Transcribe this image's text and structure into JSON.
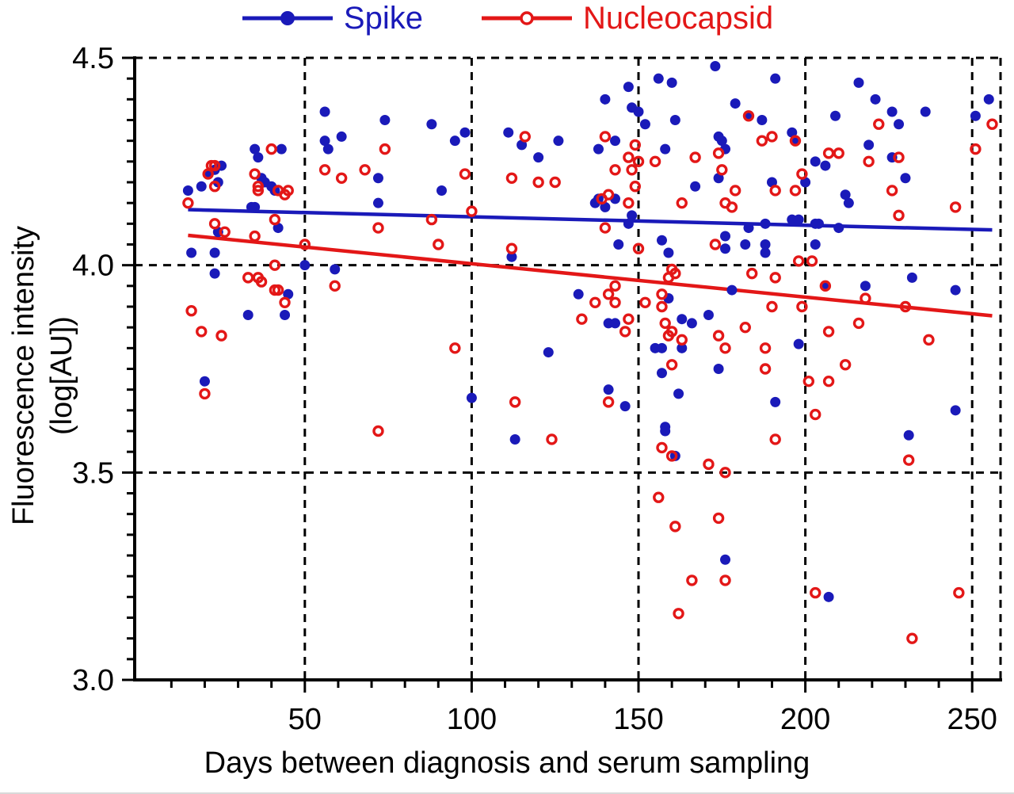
{
  "legend": {
    "series": [
      {
        "label": "Spike",
        "color": "#1a1ab9",
        "marker": "filled-circle"
      },
      {
        "label": "Nucleocapsid",
        "color": "#e31717",
        "marker": "open-circle"
      }
    ]
  },
  "axes": {
    "x": {
      "label": "Days between diagnosis and serum sampling",
      "tick_labels": [
        "50",
        "100",
        "150",
        "200",
        "250"
      ],
      "ticks": [
        50,
        100,
        150,
        200,
        250
      ],
      "minor_step": 10,
      "range": [
        -1,
        258.5
      ]
    },
    "y": {
      "label": "Fluorescence intensity (log[AU])",
      "tick_labels": [
        "3.0",
        "3.5",
        "4.0",
        "4.5"
      ],
      "ticks": [
        3.0,
        3.5,
        4.0,
        4.5
      ],
      "minor_step": 0.05,
      "range": [
        3.0,
        4.5
      ]
    }
  },
  "chart_data": {
    "type": "scatter",
    "title": "",
    "xlabel": "Days between diagnosis and serum sampling",
    "ylabel": "Fluorescence intensity (log[AU])",
    "xlim": [
      -1,
      258.5
    ],
    "ylim": [
      3.0,
      4.5
    ],
    "grid": "dashed-black-major-gridlines",
    "legend_position": "top-center",
    "axis_color": "#000000",
    "series": [
      {
        "name": "Spike",
        "marker": "filled-circle",
        "color": "#1a1ab9",
        "trend_line": {
          "x1": 15,
          "y1": 4.134,
          "x2": 256,
          "y2": 4.085
        },
        "points": [
          [
            15,
            4.18
          ],
          [
            19,
            4.19
          ],
          [
            21,
            4.22
          ],
          [
            23,
            4.23
          ],
          [
            25,
            4.24
          ],
          [
            24,
            4.2
          ],
          [
            16,
            4.03
          ],
          [
            23,
            4.03
          ],
          [
            24,
            4.08
          ],
          [
            23,
            3.98
          ],
          [
            20,
            3.72
          ],
          [
            33,
            3.88
          ],
          [
            35,
            4.28
          ],
          [
            36,
            4.26
          ],
          [
            43,
            4.28
          ],
          [
            37,
            4.21
          ],
          [
            38,
            4.2
          ],
          [
            40,
            4.19
          ],
          [
            41,
            4.18
          ],
          [
            35,
            4.14
          ],
          [
            42,
            4.09
          ],
          [
            34,
            4.14
          ],
          [
            45,
            3.93
          ],
          [
            44,
            3.88
          ],
          [
            50,
            4.0
          ],
          [
            56,
            4.37
          ],
          [
            56,
            4.3
          ],
          [
            57,
            4.28
          ],
          [
            61,
            4.31
          ],
          [
            59,
            3.99
          ],
          [
            72,
            4.21
          ],
          [
            74,
            4.35
          ],
          [
            72,
            4.15
          ],
          [
            88,
            4.34
          ],
          [
            91,
            4.18
          ],
          [
            95,
            4.3
          ],
          [
            98,
            4.32
          ],
          [
            100,
            3.68
          ],
          [
            111,
            4.32
          ],
          [
            112,
            4.02
          ],
          [
            113,
            3.58
          ],
          [
            115,
            4.29
          ],
          [
            120,
            4.26
          ],
          [
            123,
            3.79
          ],
          [
            126,
            4.3
          ],
          [
            132,
            3.93
          ],
          [
            137,
            4.15
          ],
          [
            138,
            4.28
          ],
          [
            138,
            4.16
          ],
          [
            140,
            4.4
          ],
          [
            140,
            4.14
          ],
          [
            141,
            3.86
          ],
          [
            141,
            3.7
          ],
          [
            143,
            4.3
          ],
          [
            143,
            4.16
          ],
          [
            143,
            3.86
          ],
          [
            144,
            4.05
          ],
          [
            146,
            3.66
          ],
          [
            147,
            4.43
          ],
          [
            147,
            4.1
          ],
          [
            148,
            4.38
          ],
          [
            148,
            4.12
          ],
          [
            150,
            4.37
          ],
          [
            152,
            4.34
          ],
          [
            155,
            3.8
          ],
          [
            156,
            4.45
          ],
          [
            157,
            3.8
          ],
          [
            157,
            3.74
          ],
          [
            157,
            4.06
          ],
          [
            158,
            3.61
          ],
          [
            158,
            3.6
          ],
          [
            158,
            4.28
          ],
          [
            159,
            3.92
          ],
          [
            159,
            4.03
          ],
          [
            160,
            4.44
          ],
          [
            161,
            4.35
          ],
          [
            161,
            3.54
          ],
          [
            162,
            3.69
          ],
          [
            163,
            3.87
          ],
          [
            163,
            3.8
          ],
          [
            166,
            3.86
          ],
          [
            167,
            4.19
          ],
          [
            171,
            3.88
          ],
          [
            173,
            4.48
          ],
          [
            174,
            4.31
          ],
          [
            175,
            4.3
          ],
          [
            174,
            4.21
          ],
          [
            174,
            3.75
          ],
          [
            176,
            4.28
          ],
          [
            176,
            4.07
          ],
          [
            176,
            4.04
          ],
          [
            176,
            3.29
          ],
          [
            178,
            3.94
          ],
          [
            179,
            4.39
          ],
          [
            182,
            4.05
          ],
          [
            183,
            4.36
          ],
          [
            183,
            4.09
          ],
          [
            187,
            4.35
          ],
          [
            188,
            4.05
          ],
          [
            188,
            4.1
          ],
          [
            188,
            4.03
          ],
          [
            191,
            4.45
          ],
          [
            190,
            4.2
          ],
          [
            191,
            3.67
          ],
          [
            196,
            4.32
          ],
          [
            197,
            4.3
          ],
          [
            196,
            4.11
          ],
          [
            198,
            4.11
          ],
          [
            198,
            3.81
          ],
          [
            200,
            4.2
          ],
          [
            203,
            4.25
          ],
          [
            203,
            4.1
          ],
          [
            203,
            4.05
          ],
          [
            204,
            4.1
          ],
          [
            206,
            4.24
          ],
          [
            206,
            3.95
          ],
          [
            207,
            3.2
          ],
          [
            209,
            4.36
          ],
          [
            210,
            4.09
          ],
          [
            212,
            4.17
          ],
          [
            213,
            4.15
          ],
          [
            216,
            4.44
          ],
          [
            218,
            3.95
          ],
          [
            219,
            4.29
          ],
          [
            221,
            4.4
          ],
          [
            226,
            4.37
          ],
          [
            226,
            4.26
          ],
          [
            228,
            4.34
          ],
          [
            230,
            4.21
          ],
          [
            231,
            3.59
          ],
          [
            232,
            3.97
          ],
          [
            236,
            4.37
          ],
          [
            245,
            3.94
          ],
          [
            245,
            3.65
          ],
          [
            251,
            4.36
          ],
          [
            255,
            4.4
          ]
        ]
      },
      {
        "name": "Nucleocapsid",
        "marker": "open-circle",
        "color": "#e31717",
        "trend_line": {
          "x1": 15,
          "y1": 4.072,
          "x2": 256,
          "y2": 3.878
        },
        "points": [
          [
            15,
            4.15
          ],
          [
            21,
            4.22
          ],
          [
            22,
            4.24
          ],
          [
            23,
            4.24
          ],
          [
            23,
            4.19
          ],
          [
            23,
            4.1
          ],
          [
            26,
            4.08
          ],
          [
            16,
            3.89
          ],
          [
            19,
            3.84
          ],
          [
            25,
            3.83
          ],
          [
            20,
            3.69
          ],
          [
            33,
            3.97
          ],
          [
            36,
            3.97
          ],
          [
            37,
            3.96
          ],
          [
            35,
            4.22
          ],
          [
            36,
            4.19
          ],
          [
            36,
            4.18
          ],
          [
            40,
            4.28
          ],
          [
            42,
            4.18
          ],
          [
            44,
            4.17
          ],
          [
            45,
            4.18
          ],
          [
            35,
            4.07
          ],
          [
            41,
            4.11
          ],
          [
            41,
            3.94
          ],
          [
            42,
            3.94
          ],
          [
            44,
            3.91
          ],
          [
            41,
            4.0
          ],
          [
            50,
            4.05
          ],
          [
            56,
            4.23
          ],
          [
            59,
            3.95
          ],
          [
            61,
            4.21
          ],
          [
            68,
            4.23
          ],
          [
            72,
            3.6
          ],
          [
            72,
            4.09
          ],
          [
            74,
            4.28
          ],
          [
            88,
            4.11
          ],
          [
            90,
            4.05
          ],
          [
            95,
            3.8
          ],
          [
            98,
            4.22
          ],
          [
            100,
            4.13
          ],
          [
            112,
            4.21
          ],
          [
            112,
            4.04
          ],
          [
            113,
            3.67
          ],
          [
            116,
            4.31
          ],
          [
            120,
            4.2
          ],
          [
            124,
            3.58
          ],
          [
            125,
            4.2
          ],
          [
            133,
            3.87
          ],
          [
            137,
            3.91
          ],
          [
            139,
            4.16
          ],
          [
            140,
            4.31
          ],
          [
            140,
            4.09
          ],
          [
            141,
            4.17
          ],
          [
            141,
            3.93
          ],
          [
            141,
            3.67
          ],
          [
            143,
            4.23
          ],
          [
            143,
            3.95
          ],
          [
            143,
            3.91
          ],
          [
            146,
            3.84
          ],
          [
            147,
            4.15
          ],
          [
            147,
            4.26
          ],
          [
            147,
            3.87
          ],
          [
            148,
            4.23
          ],
          [
            149,
            4.29
          ],
          [
            149,
            4.19
          ],
          [
            150,
            4.25
          ],
          [
            150,
            4.04
          ],
          [
            152,
            3.91
          ],
          [
            155,
            4.25
          ],
          [
            157,
            3.93
          ],
          [
            157,
            3.9
          ],
          [
            157,
            3.56
          ],
          [
            156,
            3.44
          ],
          [
            158,
            3.86
          ],
          [
            159,
            3.97
          ],
          [
            159,
            3.83
          ],
          [
            160,
            3.99
          ],
          [
            161,
            3.98
          ],
          [
            160,
            3.84
          ],
          [
            160,
            3.76
          ],
          [
            160,
            3.54
          ],
          [
            161,
            3.37
          ],
          [
            162,
            3.16
          ],
          [
            163,
            4.15
          ],
          [
            163,
            3.82
          ],
          [
            166,
            3.24
          ],
          [
            167,
            4.26
          ],
          [
            171,
            3.52
          ],
          [
            174,
            4.27
          ],
          [
            173,
            4.05
          ],
          [
            174,
            3.83
          ],
          [
            174,
            3.39
          ],
          [
            175,
            4.23
          ],
          [
            176,
            4.15
          ],
          [
            176,
            3.8
          ],
          [
            176,
            3.5
          ],
          [
            176,
            3.24
          ],
          [
            178,
            4.14
          ],
          [
            179,
            4.18
          ],
          [
            182,
            3.85
          ],
          [
            183,
            4.36
          ],
          [
            184,
            3.98
          ],
          [
            187,
            4.3
          ],
          [
            188,
            3.8
          ],
          [
            188,
            3.75
          ],
          [
            190,
            4.31
          ],
          [
            191,
            4.18
          ],
          [
            190,
            3.9
          ],
          [
            191,
            3.97
          ],
          [
            191,
            3.58
          ],
          [
            197,
            4.3
          ],
          [
            197,
            4.18
          ],
          [
            198,
            4.01
          ],
          [
            199,
            3.9
          ],
          [
            199,
            4.22
          ],
          [
            201,
            3.72
          ],
          [
            202,
            4.01
          ],
          [
            203,
            3.64
          ],
          [
            203,
            3.21
          ],
          [
            206,
            3.95
          ],
          [
            207,
            4.27
          ],
          [
            207,
            3.84
          ],
          [
            207,
            3.72
          ],
          [
            210,
            4.27
          ],
          [
            212,
            3.76
          ],
          [
            216,
            3.86
          ],
          [
            218,
            3.92
          ],
          [
            219,
            4.25
          ],
          [
            222,
            4.34
          ],
          [
            226,
            4.18
          ],
          [
            228,
            4.26
          ],
          [
            228,
            4.12
          ],
          [
            230,
            3.9
          ],
          [
            231,
            3.53
          ],
          [
            232,
            3.1
          ],
          [
            237,
            3.82
          ],
          [
            245,
            4.14
          ],
          [
            246,
            3.21
          ],
          [
            251,
            4.28
          ],
          [
            256,
            4.34
          ]
        ]
      }
    ]
  }
}
